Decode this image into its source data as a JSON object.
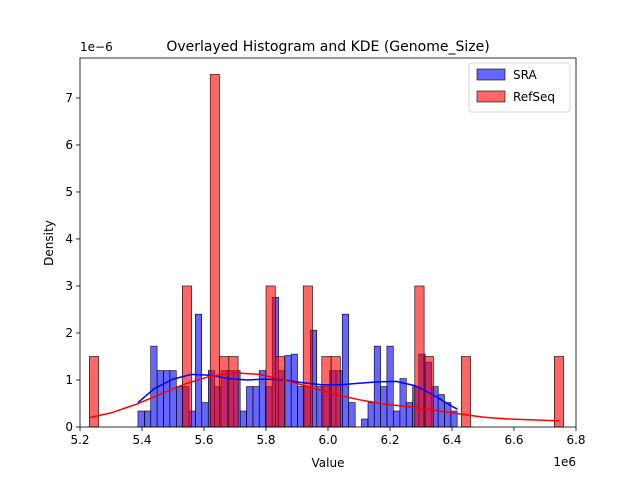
{
  "chart_data": {
    "type": "histogram_kde",
    "title": "Overlayed Histogram and KDE (Genome_Size)",
    "xlabel": "Value",
    "ylabel": "Density",
    "x_offset_label": "1e6",
    "y_offset_label": "1e−6",
    "xlim": [
      5.2,
      6.8
    ],
    "ylim": [
      0,
      7.85
    ],
    "x_ticks": [
      5.2,
      5.4,
      5.6,
      5.8,
      6.0,
      6.2,
      6.4,
      6.6,
      6.8
    ],
    "x_tick_labels": [
      "5.2",
      "5.4",
      "5.6",
      "5.8",
      "6.0",
      "6.2",
      "6.4",
      "6.6",
      "6.8"
    ],
    "y_ticks": [
      0,
      1,
      2,
      3,
      4,
      5,
      6,
      7
    ],
    "y_tick_labels": [
      "0",
      "1",
      "2",
      "3",
      "4",
      "5",
      "6",
      "7"
    ],
    "grid": false,
    "legend_position": "top-right",
    "series": [
      {
        "name": "SRA",
        "color": "#0000ff",
        "kind": "histogram",
        "bin_width": 0.0206,
        "bins": [
          [
            5.387,
            0.34
          ],
          [
            5.408,
            0.34
          ],
          [
            5.428,
            1.72
          ],
          [
            5.449,
            1.2
          ],
          [
            5.469,
            1.2
          ],
          [
            5.49,
            1.2
          ],
          [
            5.511,
            0.86
          ],
          [
            5.531,
            0.86
          ],
          [
            5.552,
            0.34
          ],
          [
            5.572,
            2.4
          ],
          [
            5.593,
            0.52
          ],
          [
            5.614,
            1.2
          ],
          [
            5.634,
            0.86
          ],
          [
            5.655,
            1.2
          ],
          [
            5.675,
            1.2
          ],
          [
            5.696,
            1.2
          ],
          [
            5.717,
            0.34
          ],
          [
            5.737,
            0.86
          ],
          [
            5.758,
            0.86
          ],
          [
            5.778,
            1.2
          ],
          [
            5.799,
            0.86
          ],
          [
            5.82,
            2.76
          ],
          [
            5.84,
            1.2
          ],
          [
            5.861,
            1.52
          ],
          [
            5.881,
            1.55
          ],
          [
            5.902,
            0.86
          ],
          [
            5.923,
            0.86
          ],
          [
            5.943,
            2.06
          ],
          [
            5.964,
            0.86
          ],
          [
            5.984,
            0.86
          ],
          [
            6.005,
            1.2
          ],
          [
            6.026,
            1.2
          ],
          [
            6.046,
            2.4
          ],
          [
            6.067,
            0.52
          ],
          [
            6.087,
            0.0
          ],
          [
            6.108,
            0.17
          ],
          [
            6.129,
            0.52
          ],
          [
            6.149,
            1.72
          ],
          [
            6.17,
            0.86
          ],
          [
            6.19,
            1.72
          ],
          [
            6.211,
            0.34
          ],
          [
            6.232,
            1.03
          ],
          [
            6.252,
            0.52
          ],
          [
            6.273,
            0.86
          ],
          [
            6.293,
            1.55
          ],
          [
            6.314,
            1.38
          ],
          [
            6.335,
            0.86
          ],
          [
            6.355,
            0.69
          ],
          [
            6.376,
            0.52
          ],
          [
            6.396,
            0.34
          ]
        ],
        "kde": {
          "x": [
            5.387,
            5.44,
            5.5,
            5.56,
            5.62,
            5.68,
            5.74,
            5.8,
            5.86,
            5.92,
            5.98,
            6.04,
            6.1,
            6.16,
            6.22,
            6.28,
            6.34,
            6.4,
            6.417
          ],
          "y": [
            0.52,
            0.82,
            1.02,
            1.12,
            1.1,
            1.03,
            1.0,
            1.02,
            1.0,
            0.94,
            0.9,
            0.9,
            0.93,
            0.96,
            0.97,
            0.88,
            0.68,
            0.44,
            0.38
          ]
        }
      },
      {
        "name": "RefSeq",
        "color": "#ff0000",
        "kind": "histogram",
        "bin_width": 0.03,
        "bins": [
          [
            5.23,
            1.5
          ],
          [
            5.26,
            0
          ],
          [
            5.29,
            0
          ],
          [
            5.32,
            0
          ],
          [
            5.35,
            0
          ],
          [
            5.38,
            0
          ],
          [
            5.41,
            0
          ],
          [
            5.44,
            0
          ],
          [
            5.47,
            0
          ],
          [
            5.5,
            0
          ],
          [
            5.53,
            3.0
          ],
          [
            5.56,
            0
          ],
          [
            5.59,
            0
          ],
          [
            5.62,
            7.5
          ],
          [
            5.65,
            1.5
          ],
          [
            5.68,
            1.5
          ],
          [
            5.71,
            0
          ],
          [
            5.74,
            0
          ],
          [
            5.77,
            0
          ],
          [
            5.8,
            3.0
          ],
          [
            5.83,
            1.5
          ],
          [
            5.86,
            0
          ],
          [
            5.89,
            0
          ],
          [
            5.92,
            3.0
          ],
          [
            5.95,
            0
          ],
          [
            5.98,
            1.5
          ],
          [
            6.01,
            1.5
          ],
          [
            6.04,
            0
          ],
          [
            6.07,
            0
          ],
          [
            6.1,
            0
          ],
          [
            6.13,
            0
          ],
          [
            6.16,
            0
          ],
          [
            6.19,
            0
          ],
          [
            6.22,
            0
          ],
          [
            6.25,
            0
          ],
          [
            6.28,
            3.0
          ],
          [
            6.31,
            1.5
          ],
          [
            6.34,
            0
          ],
          [
            6.37,
            0
          ],
          [
            6.4,
            0
          ],
          [
            6.43,
            1.5
          ],
          [
            6.46,
            0
          ],
          [
            6.49,
            0
          ],
          [
            6.52,
            0
          ],
          [
            6.55,
            0
          ],
          [
            6.58,
            0
          ],
          [
            6.61,
            0
          ],
          [
            6.64,
            0
          ],
          [
            6.67,
            0
          ],
          [
            6.7,
            0
          ],
          [
            6.73,
            1.5
          ]
        ],
        "kde": {
          "x": [
            5.23,
            5.3,
            5.38,
            5.46,
            5.54,
            5.62,
            5.7,
            5.78,
            5.86,
            5.94,
            6.02,
            6.1,
            6.18,
            6.26,
            6.34,
            6.42,
            6.5,
            6.58,
            6.66,
            6.745
          ],
          "y": [
            0.2,
            0.3,
            0.48,
            0.7,
            0.92,
            1.08,
            1.15,
            1.12,
            1.0,
            0.85,
            0.7,
            0.58,
            0.49,
            0.43,
            0.36,
            0.28,
            0.21,
            0.17,
            0.15,
            0.13
          ]
        }
      }
    ]
  }
}
